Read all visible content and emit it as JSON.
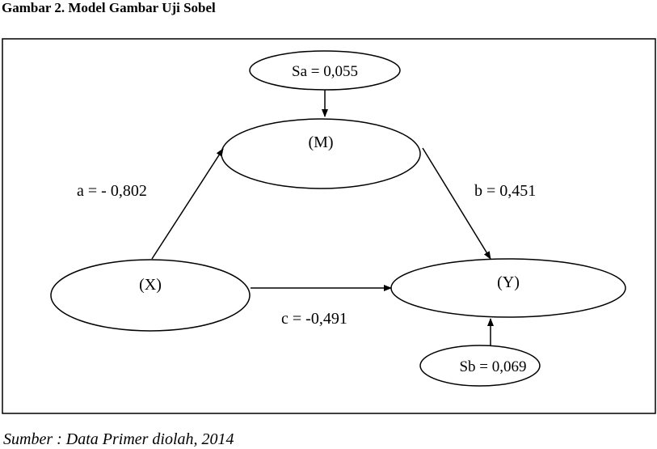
{
  "figure": {
    "caption": "Gambar 2. Model Gambar Uji Sobel",
    "source": "Sumber : Data Primer diolah, 2014"
  },
  "nodes": {
    "x": "(X)",
    "m": "(M)",
    "y": "(Y)",
    "sa": "Sa = 0,055",
    "sb": "Sb = 0,069"
  },
  "paths": {
    "a": "a = - 0,802",
    "b": "b = 0,451",
    "c": "c = -0,491"
  }
}
